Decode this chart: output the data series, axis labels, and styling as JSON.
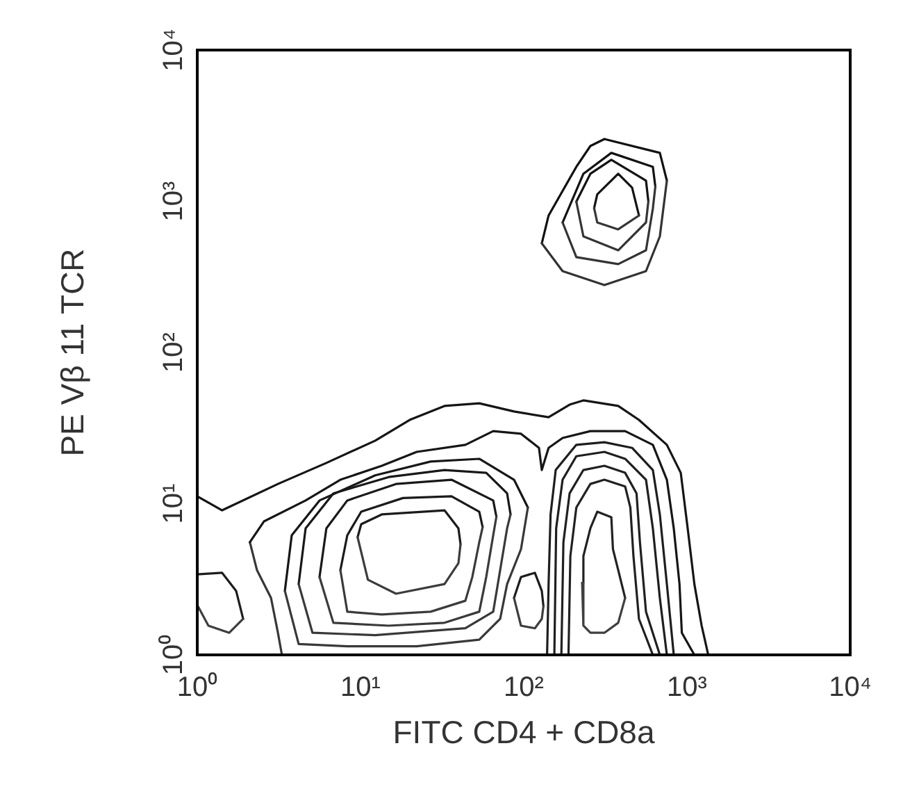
{
  "chart_data": {
    "type": "line",
    "xlabel": "FITC CD4 + CD8a",
    "ylabel": "PE Vβ 11 TCR",
    "log": "xy",
    "xlim": [
      1,
      10000
    ],
    "ylim": [
      1,
      10000
    ],
    "xticks": [
      {
        "value": 1,
        "label": "10⁰"
      },
      {
        "value": 10,
        "label": "10¹"
      },
      {
        "value": 100,
        "label": "10²"
      },
      {
        "value": 1000,
        "label": "10³"
      },
      {
        "value": 10000,
        "label": "10⁴"
      }
    ],
    "yticks": [
      {
        "value": 1,
        "label": "10⁰"
      },
      {
        "value": 10,
        "label": "10¹"
      },
      {
        "value": 100,
        "label": "10²"
      },
      {
        "value": 1000,
        "label": "10³"
      },
      {
        "value": 10000,
        "label": "10⁴"
      }
    ],
    "marker": "none",
    "series": [
      {
        "color": "#111111",
        "x": [
          129,
          142,
          210,
          256,
          312,
          682,
          753
        ],
        "values": [
          527,
          805,
          1690,
          2320,
          2580,
          2090,
          1370
        ]
      },
      {
        "color": "#333333",
        "x": [
          129,
          173,
          312,
          561,
          682,
          753
        ],
        "values": [
          527,
          345,
          279,
          345,
          586,
          1370
        ]
      },
      {
        "color": "#121212",
        "x": [
          173,
          232,
          344,
          618,
          640
        ],
        "values": [
          724,
          1520,
          2090,
          1690,
          1250
        ]
      },
      {
        "color": "#343434",
        "x": [
          173,
          210,
          379,
          561,
          618,
          640
        ],
        "values": [
          724,
          427,
          384,
          474,
          895,
          1250
        ]
      },
      {
        "color": "#131313",
        "x": [
          210,
          256,
          344,
          561,
          580
        ],
        "values": [
          995,
          1520,
          1880,
          1370,
          1000
        ]
      },
      {
        "color": "#353535",
        "x": [
          210,
          232,
          379,
          561,
          580
        ],
        "values": [
          995,
          586,
          474,
          724,
          1000
        ]
      },
      {
        "color": "#141414",
        "x": [
          270,
          282,
          379,
          461,
          508
        ],
        "values": [
          900,
          1110,
          1520,
          1230,
          805
        ]
      },
      {
        "color": "#363636",
        "x": [
          270,
          282,
          379,
          508
        ],
        "values": [
          900,
          724,
          652,
          805
        ]
      },
      {
        "color": "#151515",
        "x": [
          1,
          1.42,
          3.12,
          6.18,
          12.3,
          20,
          32.7,
          53.4,
          87.2,
          142,
          191,
          232,
          379,
          508,
          753,
          916,
          1010,
          1110,
          1230,
          1350
        ],
        "values": [
          11.2,
          9.04,
          13.5,
          18.6,
          26.1,
          35.8,
          44.3,
          46.1,
          40.7,
          37.3,
          45.2,
          48.2,
          44.3,
          35.8,
          24.5,
          16,
          6.87,
          2.94,
          1.56,
          1
        ]
      },
      {
        "color": "#373737",
        "x": [
          2.1,
          2.32,
          2.83,
          3.12,
          3.3
        ],
        "values": [
          5.56,
          3.64,
          2.38,
          1.4,
          1
        ]
      },
      {
        "color": "#161616",
        "x": [
          2.1,
          2.56,
          4.61,
          7.53,
          13.5,
          22.1,
          43.9,
          65,
          96.2,
          124,
          129,
          142,
          173,
          256,
          418,
          618,
          753,
          830,
          900,
          930,
          1110
        ],
        "values": [
          5.56,
          7.63,
          10.5,
          14.4,
          17.8,
          22,
          24.5,
          30.2,
          29,
          23.4,
          16.7,
          23.4,
          27.2,
          30.2,
          30.2,
          24.5,
          14.4,
          6.87,
          2.94,
          1.4,
          1
        ]
      },
      {
        "color": "#171717",
        "x": [
          3.44,
          3.79,
          5.61,
          12.3,
          26.9,
          53.4,
          87.2,
          106
        ],
        "values": [
          2.65,
          6.18,
          10.5,
          15.4,
          19,
          19.8,
          14.4,
          9.43
        ]
      },
      {
        "color": "#383838",
        "x": [
          3.44,
          4.18,
          8.3,
          22.1,
          53.4,
          71.7,
          79.1,
          96.2,
          106
        ],
        "values": [
          2.65,
          1.18,
          1.14,
          1.14,
          1.26,
          1.73,
          2.94,
          5,
          9.43
        ]
      },
      {
        "color": "#181818",
        "x": [
          4.18,
          4.61,
          6.82,
          14.9,
          32.7,
          58.9,
          79.1,
          83
        ],
        "values": [
          2.94,
          6.87,
          11.7,
          15,
          16.7,
          16,
          11.7,
          8.5
        ]
      },
      {
        "color": "#393939",
        "x": [
          4.18,
          5.08,
          12.3,
          43.9,
          65,
          71.7,
          79.1,
          83
        ],
        "values": [
          2.94,
          1.4,
          1.35,
          1.5,
          1.93,
          3.64,
          6.87,
          8.5
        ]
      },
      {
        "color": "#191919",
        "x": [
          5.61,
          6.18,
          8.3,
          16.5,
          36.1,
          65,
          68
        ],
        "values": [
          3.27,
          6.87,
          10.5,
          13.5,
          14.4,
          10.5,
          8.2
        ]
      },
      {
        "color": "#3a3a3a",
        "x": [
          5.61,
          6.82,
          14.9,
          32.7,
          53.4,
          58.9,
          65,
          68
        ],
        "values": [
          3.27,
          1.63,
          1.56,
          1.63,
          1.93,
          3.27,
          6.18,
          8.2
        ]
      },
      {
        "color": "#1a1a1a",
        "x": [
          7.53,
          8.3,
          10.1,
          18.2,
          36.1,
          53.4,
          56
        ],
        "values": [
          3.64,
          6.18,
          8.85,
          10.9,
          11.2,
          8.85,
          7
        ]
      },
      {
        "color": "#3b3b3b",
        "x": [
          7.53,
          8.3,
          13.5,
          26.9,
          43.9,
          48.4,
          53.4,
          56
        ],
        "values": [
          3.64,
          1.93,
          1.85,
          1.93,
          2.28,
          3.27,
          5.56,
          7
        ]
      },
      {
        "color": "#1b1b1b",
        "x": [
          9.6,
          10.1,
          13.5,
          32.7,
          39.8,
          41
        ],
        "values": [
          6,
          7.32,
          8.49,
          9.04,
          6.87,
          5.4
        ]
      },
      {
        "color": "#3c3c3c",
        "x": [
          9.6,
          10.1,
          11.1,
          16.5,
          32.7,
          39.8,
          41
        ],
        "values": [
          6,
          4.79,
          3.14,
          2.54,
          2.94,
          4.04,
          5.4
        ]
      },
      {
        "color": "#1c1c1c",
        "x": [
          87.2,
          96.2,
          117,
          129,
          132
        ],
        "values": [
          2.38,
          3.27,
          3.49,
          2.65,
          2.1
        ]
      },
      {
        "color": "#3d3d3d",
        "x": [
          87.2,
          96.2,
          117,
          129,
          132
        ],
        "values": [
          2.38,
          1.56,
          1.5,
          1.73,
          2.1
        ]
      },
      {
        "color": "#1d1d1d",
        "x": [
          1,
          1.42,
          1.73,
          1.91
        ],
        "values": [
          3.41,
          3.49,
          2.65,
          1.73
        ]
      },
      {
        "color": "#3e3e3e",
        "x": [
          1,
          1.17,
          1.57,
          1.91
        ],
        "values": [
          2.14,
          1.56,
          1.4,
          1.73
        ]
      },
      {
        "color": "#1e1e1e",
        "x": [
          139,
          142,
          146,
          157,
          210,
          312,
          461,
          618,
          682,
          753,
          830
        ],
        "values": [
          1,
          2.94,
          8.49,
          16.7,
          24.5,
          25.5,
          23.4,
          16.7,
          8.49,
          2.94,
          1
        ]
      },
      {
        "color": "#1f1f1f",
        "x": [
          154,
          158,
          173,
          210,
          312,
          418,
          561,
          618,
          682,
          753
        ],
        "values": [
          1,
          6.87,
          14.4,
          20.6,
          22,
          19.8,
          14.4,
          6.87,
          2.38,
          1
        ]
      },
      {
        "color": "#202020",
        "x": [
          170,
          175,
          191,
          232,
          312,
          418,
          491,
          515,
          561,
          682
        ],
        "values": [
          1,
          5.56,
          11.7,
          16.7,
          17.8,
          16,
          11.7,
          5.56,
          1.93,
          1
        ]
      },
      {
        "color": "#212121",
        "x": [
          188,
          193,
          210,
          256,
          312,
          418,
          450,
          470,
          508,
          618
        ],
        "values": [
          1,
          4.5,
          9.43,
          13.5,
          14.4,
          13,
          9.43,
          4.5,
          1.73,
          1
        ]
      },
      {
        "color": "#222222",
        "x": [
          228,
          232,
          256,
          282,
          344,
          352,
          379,
          418
        ],
        "values": [
          3,
          4.5,
          6.87,
          8.85,
          8.13,
          5,
          3.64,
          2.38
        ]
      },
      {
        "color": "#3f3f3f",
        "x": [
          228,
          232,
          256,
          312,
          379,
          418
        ],
        "values": [
          3,
          1.56,
          1.4,
          1.4,
          1.63,
          2.38
        ]
      }
    ]
  }
}
